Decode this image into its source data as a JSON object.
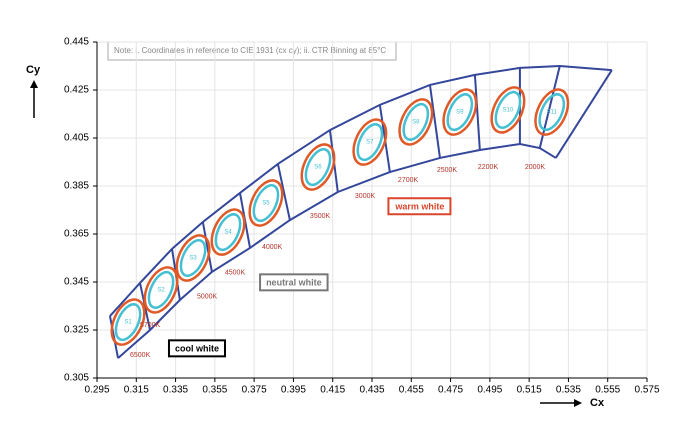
{
  "chart_data": {
    "type": "bin-map",
    "note": "Note: i. Coordinates in reference to CIE 1931 (cx cy); ii. CTR Binning at 85°C",
    "x_label": "Cx",
    "y_label": "Cy",
    "xlim": [
      0.295,
      0.575
    ],
    "xticks": [
      0.295,
      0.315,
      0.335,
      0.355,
      0.375,
      0.395,
      0.415,
      0.435,
      0.455,
      0.475,
      0.495,
      0.515,
      0.535,
      0.555,
      0.575
    ],
    "ylim": [
      0.305,
      0.445
    ],
    "yticks": [
      0.305,
      0.325,
      0.345,
      0.365,
      0.385,
      0.405,
      0.425,
      0.445
    ],
    "grid": true,
    "boundary": {
      "color": "#34479a",
      "top": {
        "x": [
          0.3016,
          0.3169,
          0.3332,
          0.3489,
          0.3678,
          0.3871,
          0.4136,
          0.439,
          0.4645,
          0.4874,
          0.5103,
          0.5306,
          0.5571
        ],
        "y": [
          0.3308,
          0.3446,
          0.3588,
          0.37,
          0.3821,
          0.3942,
          0.4083,
          0.4188,
          0.4271,
          0.4313,
          0.4342,
          0.435,
          0.4333
        ]
      },
      "bottom": {
        "x": [
          0.3057,
          0.322,
          0.3372,
          0.3535,
          0.3729,
          0.3932,
          0.4176,
          0.4441,
          0.4696,
          0.4899,
          0.5103,
          0.5204,
          0.5286
        ],
        "y": [
          0.3133,
          0.325,
          0.3375,
          0.3492,
          0.3592,
          0.3708,
          0.3825,
          0.3908,
          0.3967,
          0.4,
          0.4025,
          0.4008,
          0.3967
        ]
      }
    },
    "ellipses": {
      "color": "#45bfd2",
      "outer_color": "#e05a28",
      "labels": [
        "S1",
        "S2",
        "S3",
        "S4",
        "S5",
        "S6",
        "S7",
        "S8",
        "S9",
        "S10",
        "S11"
      ],
      "x": [
        0.3108,
        0.3276,
        0.3439,
        0.3617,
        0.381,
        0.4075,
        0.4339,
        0.4573,
        0.4797,
        0.5042,
        0.5265
      ],
      "y": [
        0.3283,
        0.3417,
        0.355,
        0.3658,
        0.3779,
        0.3929,
        0.4033,
        0.4117,
        0.4158,
        0.4167,
        0.4158
      ]
    },
    "cct": {
      "color": "#b5332a",
      "labels": [
        "6500K",
        "5700K",
        "5000K",
        "4500K",
        "4000K",
        "3500K",
        "3000K",
        "2700K",
        "2500K",
        "2200K",
        "2000K"
      ],
      "x": [
        0.3118,
        0.3169,
        0.3459,
        0.3601,
        0.379,
        0.4034,
        0.4263,
        0.4482,
        0.468,
        0.4889,
        0.5128
      ],
      "y": [
        0.3146,
        0.3271,
        0.3388,
        0.3488,
        0.3596,
        0.3725,
        0.3808,
        0.3875,
        0.3917,
        0.3929,
        0.3929
      ]
    },
    "annotations": [
      {
        "text": "warm white",
        "x": 0.4594,
        "y": 0.3763,
        "color": "#d9452b"
      },
      {
        "text": "neutral white",
        "x": 0.3952,
        "y": 0.3446,
        "color": "#777777"
      },
      {
        "text": "cool white",
        "x": 0.3459,
        "y": 0.3171,
        "color": "#000000"
      }
    ]
  }
}
